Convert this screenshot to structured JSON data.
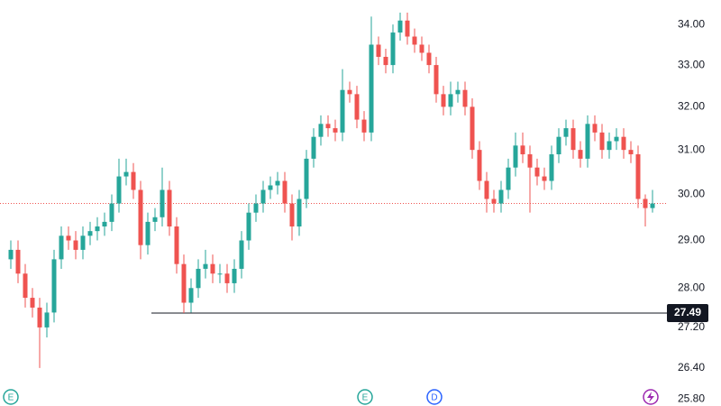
{
  "chart_data": {
    "type": "candlestick",
    "log_scale": true,
    "up_color": "#26a69a",
    "down_color": "#ef5350",
    "open": [
      28.6,
      28.8,
      28.3,
      27.8,
      27.6,
      27.2,
      27.5,
      28.6,
      29.1,
      29.0,
      28.8,
      29.1,
      29.2,
      29.3,
      29.4,
      29.8,
      30.4,
      30.5,
      30.1,
      28.9,
      29.4,
      29.5,
      30.1,
      29.3,
      28.5,
      27.7,
      28.0,
      28.4,
      28.5,
      28.3,
      28.3,
      28.1,
      28.4,
      29.0,
      29.6,
      29.8,
      30.1,
      30.2,
      30.3,
      29.8,
      29.3,
      29.9,
      30.8,
      31.3,
      31.6,
      31.5,
      31.4,
      32.4,
      32.3,
      31.7,
      31.4,
      33.5,
      33.2,
      33.0,
      33.8,
      34.1,
      33.7,
      33.5,
      33.3,
      33.0,
      32.3,
      32.0,
      32.3,
      32.4,
      32.0,
      31.0,
      30.3,
      29.9,
      29.8,
      30.1,
      30.6,
      31.1,
      30.9,
      30.6,
      30.4,
      30.3,
      30.9,
      31.3,
      31.5,
      31.0,
      30.8,
      31.6,
      31.4,
      31.0,
      31.2,
      31.3,
      31.0,
      30.9,
      29.9,
      29.7
    ],
    "high": [
      29.0,
      29.0,
      28.5,
      28.0,
      27.8,
      27.7,
      28.8,
      29.3,
      29.3,
      29.2,
      29.3,
      29.4,
      29.5,
      29.6,
      30.0,
      30.8,
      30.8,
      30.7,
      30.3,
      29.6,
      29.7,
      30.6,
      30.3,
      29.5,
      28.7,
      28.2,
      28.6,
      28.8,
      28.7,
      28.5,
      28.5,
      28.6,
      29.2,
      29.8,
      30.0,
      30.3,
      30.4,
      30.5,
      30.5,
      30.0,
      30.1,
      31.0,
      31.5,
      31.8,
      31.8,
      31.7,
      32.9,
      32.6,
      32.5,
      31.9,
      34.2,
      33.7,
      33.4,
      34.0,
      34.3,
      34.3,
      33.9,
      33.7,
      33.5,
      33.2,
      32.5,
      32.6,
      32.6,
      32.6,
      32.2,
      31.2,
      30.5,
      30.1,
      30.3,
      30.8,
      31.4,
      31.4,
      31.1,
      30.8,
      30.6,
      31.1,
      31.5,
      31.7,
      31.7,
      31.2,
      31.8,
      31.8,
      31.6,
      31.4,
      31.5,
      31.5,
      31.2,
      31.1,
      30.0,
      30.1
    ],
    "low": [
      28.4,
      28.1,
      27.6,
      27.4,
      26.4,
      27.0,
      27.3,
      28.4,
      28.8,
      28.6,
      28.6,
      28.9,
      29.0,
      29.1,
      29.2,
      29.6,
      30.2,
      29.9,
      28.6,
      28.7,
      29.2,
      29.3,
      29.1,
      28.3,
      27.49,
      27.5,
      27.8,
      28.2,
      28.1,
      28.1,
      27.9,
      27.9,
      28.2,
      28.8,
      29.4,
      29.6,
      29.9,
      30.0,
      29.6,
      29.0,
      29.1,
      29.7,
      30.6,
      31.1,
      31.3,
      31.2,
      31.2,
      32.1,
      31.5,
      31.2,
      31.2,
      33.0,
      32.8,
      32.8,
      33.6,
      33.5,
      33.3,
      33.1,
      32.8,
      32.1,
      31.8,
      31.8,
      32.1,
      31.8,
      30.8,
      30.1,
      29.6,
      29.6,
      29.6,
      29.9,
      30.4,
      30.7,
      29.6,
      30.2,
      30.1,
      30.1,
      30.7,
      31.1,
      30.8,
      30.6,
      30.6,
      31.2,
      30.8,
      30.8,
      31.0,
      30.8,
      30.7,
      29.7,
      29.3,
      29.6
    ],
    "close": [
      28.8,
      28.3,
      27.8,
      27.6,
      27.2,
      27.5,
      28.6,
      29.1,
      29.0,
      28.8,
      29.1,
      29.2,
      29.3,
      29.4,
      29.8,
      30.4,
      30.5,
      30.1,
      28.9,
      29.4,
      29.5,
      30.1,
      29.3,
      28.5,
      27.7,
      28.0,
      28.4,
      28.5,
      28.3,
      28.3,
      28.1,
      28.4,
      29.0,
      29.6,
      29.8,
      30.1,
      30.2,
      30.3,
      29.8,
      29.3,
      29.9,
      30.8,
      31.3,
      31.6,
      31.5,
      31.4,
      32.4,
      32.3,
      31.7,
      31.4,
      33.5,
      33.2,
      33.0,
      33.8,
      34.1,
      33.7,
      33.5,
      33.3,
      33.0,
      32.3,
      32.0,
      32.3,
      32.4,
      32.0,
      31.0,
      30.3,
      29.9,
      29.8,
      30.1,
      30.6,
      31.1,
      30.9,
      30.6,
      30.4,
      30.3,
      30.9,
      31.3,
      31.5,
      31.0,
      30.8,
      31.6,
      31.4,
      31.0,
      31.2,
      31.3,
      31.0,
      30.9,
      29.9,
      29.7,
      29.8
    ],
    "ylim": [
      25.67,
      34.62
    ],
    "yticks": [
      {
        "value": 25.8,
        "label": "25.80"
      },
      {
        "value": 26.4,
        "label": "26.40"
      },
      {
        "value": 27.2,
        "label": "27.20"
      },
      {
        "value": 28,
        "label": "28.00"
      },
      {
        "value": 29,
        "label": "29.00"
      },
      {
        "value": 30,
        "label": "30.00"
      },
      {
        "value": 31,
        "label": "31.00"
      },
      {
        "value": 32,
        "label": "32.00"
      },
      {
        "value": 33,
        "label": "33.00"
      },
      {
        "value": 34,
        "label": "34.00"
      }
    ],
    "level": 27.49,
    "events": [
      "E",
      "E",
      "D"
    ]
  }
}
